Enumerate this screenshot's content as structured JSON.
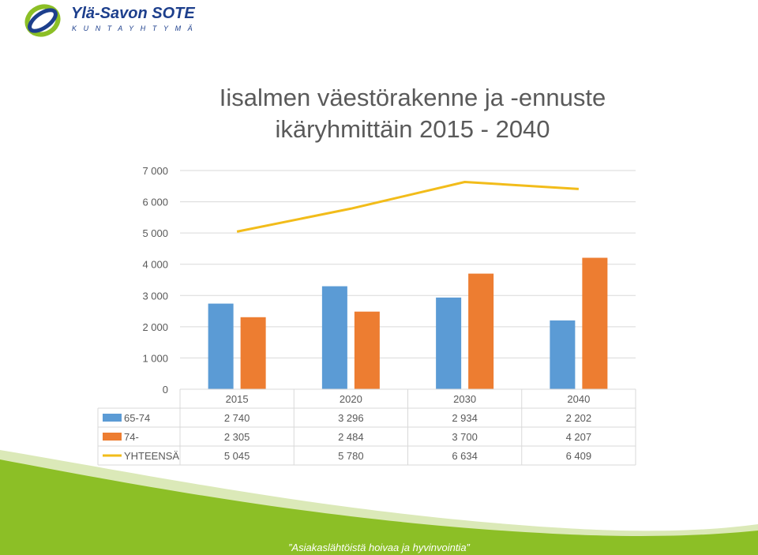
{
  "brand": {
    "name": "Ylä-Savon SOTE",
    "subtitle": "KUNTAYHTYMÄ",
    "colors": {
      "blue": "#1d3f8c",
      "green": "#8cbf26"
    }
  },
  "slide": {
    "title_line1": "Iisalmen väestörakenne ja -ennuste",
    "title_line2": "ikäryhmittäin  2015 - 2040"
  },
  "chart_data": {
    "type": "bar",
    "title": "Iisalmen väestörakenne ja -ennuste ikäryhmittäin  2015 - 2040",
    "categories": [
      "2015",
      "2020",
      "2030",
      "2040"
    ],
    "ylim": [
      0,
      7000
    ],
    "yticks": [
      "0",
      "1 000",
      "2 000",
      "3 000",
      "4 000",
      "5 000",
      "6 000",
      "7 000"
    ],
    "grid": true,
    "legend": "data-table",
    "series": [
      {
        "name": "65-74",
        "type": "bar",
        "color": "#5b9bd5",
        "values": [
          2740,
          3296,
          2934,
          2202
        ],
        "labels": [
          "2 740",
          "3 296",
          "2 934",
          "2 202"
        ]
      },
      {
        "name": "74-",
        "type": "bar",
        "color": "#ed7d31",
        "values": [
          2305,
          2484,
          3700,
          4207
        ],
        "labels": [
          "2 305",
          "2 484",
          "3 700",
          "4 207"
        ]
      },
      {
        "name": "YHTEENSÄ",
        "type": "line",
        "color": "#f2bc1a",
        "values": [
          5045,
          5780,
          6634,
          6409
        ],
        "labels": [
          "5 045",
          "5 780",
          "6 634",
          "6 409"
        ]
      }
    ]
  },
  "footer": {
    "slogan": "”Asiakaslähtöistä hoivaa ja hyvinvointia”"
  }
}
